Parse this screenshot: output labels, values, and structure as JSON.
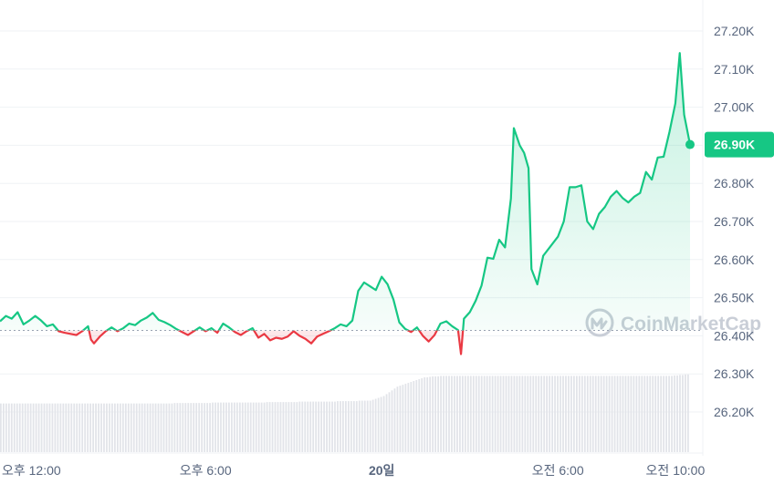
{
  "chart_data": {
    "type": "area",
    "baseline": 26414,
    "y_axis": {
      "min": 26100,
      "max": 27260,
      "ticks": [
        {
          "value": 27200,
          "label": "27.20K"
        },
        {
          "value": 27100,
          "label": "27.10K"
        },
        {
          "value": 27000,
          "label": "27.00K"
        },
        {
          "value": 26900,
          "label": "26.90K"
        },
        {
          "value": 26800,
          "label": "26.80K"
        },
        {
          "value": 26700,
          "label": "26.70K"
        },
        {
          "value": 26600,
          "label": "26.60K"
        },
        {
          "value": 26500,
          "label": "26.50K"
        },
        {
          "value": 26400,
          "label": "26.40K"
        },
        {
          "value": 26300,
          "label": "26.30K"
        },
        {
          "value": 26200,
          "label": "26.20K"
        }
      ]
    },
    "x_axis": {
      "range_hours": [
        11,
        34.5
      ],
      "ticks": [
        {
          "hour": 12,
          "label": "오후 12:00",
          "bold": false
        },
        {
          "hour": 18,
          "label": "오후 6:00",
          "bold": false
        },
        {
          "hour": 24,
          "label": "20일",
          "bold": true
        },
        {
          "hour": 30,
          "label": "오전 6:00",
          "bold": false
        },
        {
          "hour": 34,
          "label": "오전 10:00",
          "bold": false
        }
      ]
    },
    "current_price_label": "26.90K",
    "colors": {
      "up": "#16c784",
      "down": "#ea3943",
      "volume": "#e2e4e9",
      "tag": "#16c784"
    },
    "series": [
      {
        "points": [
          [
            11.0,
            26438
          ],
          [
            11.2,
            26452
          ],
          [
            11.4,
            26445
          ],
          [
            11.6,
            26462
          ],
          [
            11.8,
            26430
          ],
          [
            12.0,
            26440
          ],
          [
            12.2,
            26452
          ],
          [
            12.4,
            26440
          ],
          [
            12.6,
            26425
          ],
          [
            12.8,
            26430
          ],
          [
            13.0,
            26412
          ],
          [
            13.2,
            26408
          ],
          [
            13.4,
            26405
          ],
          [
            13.6,
            26402
          ],
          [
            13.8,
            26412
          ],
          [
            14.0,
            26425
          ],
          [
            14.1,
            26390
          ],
          [
            14.2,
            26380
          ],
          [
            14.4,
            26398
          ],
          [
            14.6,
            26412
          ],
          [
            14.8,
            26422
          ],
          [
            15.0,
            26412
          ],
          [
            15.2,
            26420
          ],
          [
            15.4,
            26432
          ],
          [
            15.6,
            26428
          ],
          [
            15.8,
            26440
          ],
          [
            16.0,
            26448
          ],
          [
            16.2,
            26460
          ],
          [
            16.4,
            26442
          ],
          [
            16.6,
            26436
          ],
          [
            16.8,
            26428
          ],
          [
            17.0,
            26418
          ],
          [
            17.2,
            26410
          ],
          [
            17.4,
            26402
          ],
          [
            17.6,
            26412
          ],
          [
            17.8,
            26422
          ],
          [
            18.0,
            26412
          ],
          [
            18.2,
            26420
          ],
          [
            18.4,
            26408
          ],
          [
            18.6,
            26432
          ],
          [
            18.8,
            26422
          ],
          [
            19.0,
            26410
          ],
          [
            19.2,
            26402
          ],
          [
            19.4,
            26412
          ],
          [
            19.6,
            26420
          ],
          [
            19.8,
            26395
          ],
          [
            20.0,
            26405
          ],
          [
            20.2,
            26388
          ],
          [
            20.4,
            26395
          ],
          [
            20.6,
            26392
          ],
          [
            20.8,
            26398
          ],
          [
            21.0,
            26412
          ],
          [
            21.2,
            26400
          ],
          [
            21.4,
            26392
          ],
          [
            21.6,
            26380
          ],
          [
            21.8,
            26398
          ],
          [
            22.0,
            26405
          ],
          [
            22.2,
            26412
          ],
          [
            22.4,
            26420
          ],
          [
            22.6,
            26430
          ],
          [
            22.8,
            26425
          ],
          [
            23.0,
            26440
          ],
          [
            23.2,
            26518
          ],
          [
            23.4,
            26540
          ],
          [
            23.6,
            26530
          ],
          [
            23.8,
            26520
          ],
          [
            24.0,
            26555
          ],
          [
            24.2,
            26535
          ],
          [
            24.4,
            26495
          ],
          [
            24.6,
            26435
          ],
          [
            24.8,
            26418
          ],
          [
            25.0,
            26410
          ],
          [
            25.2,
            26422
          ],
          [
            25.4,
            26400
          ],
          [
            25.6,
            26385
          ],
          [
            25.8,
            26402
          ],
          [
            26.0,
            26432
          ],
          [
            26.2,
            26438
          ],
          [
            26.4,
            26425
          ],
          [
            26.6,
            26415
          ],
          [
            26.7,
            26352
          ],
          [
            26.8,
            26445
          ],
          [
            27.0,
            26462
          ],
          [
            27.2,
            26492
          ],
          [
            27.4,
            26532
          ],
          [
            27.6,
            26605
          ],
          [
            27.8,
            26602
          ],
          [
            28.0,
            26652
          ],
          [
            28.2,
            26632
          ],
          [
            28.4,
            26760
          ],
          [
            28.5,
            26945
          ],
          [
            28.7,
            26900
          ],
          [
            28.85,
            26880
          ],
          [
            29.0,
            26840
          ],
          [
            29.1,
            26575
          ],
          [
            29.3,
            26535
          ],
          [
            29.5,
            26610
          ],
          [
            29.8,
            26640
          ],
          [
            30.0,
            26660
          ],
          [
            30.2,
            26700
          ],
          [
            30.4,
            26790
          ],
          [
            30.6,
            26790
          ],
          [
            30.8,
            26795
          ],
          [
            31.0,
            26700
          ],
          [
            31.2,
            26680
          ],
          [
            31.4,
            26720
          ],
          [
            31.6,
            26738
          ],
          [
            31.8,
            26765
          ],
          [
            32.0,
            26780
          ],
          [
            32.2,
            26762
          ],
          [
            32.4,
            26750
          ],
          [
            32.6,
            26765
          ],
          [
            32.8,
            26775
          ],
          [
            33.0,
            26830
          ],
          [
            33.2,
            26810
          ],
          [
            33.4,
            26868
          ],
          [
            33.6,
            26870
          ],
          [
            33.8,
            26935
          ],
          [
            34.0,
            27010
          ],
          [
            34.15,
            27142
          ],
          [
            34.3,
            26980
          ],
          [
            34.5,
            26902
          ]
        ]
      }
    ],
    "volume": {
      "range": [
        0,
        1000
      ],
      "values": [
        520,
        520,
        520,
        520,
        520,
        520,
        520,
        520,
        520,
        520,
        520,
        520,
        520,
        520,
        520,
        520,
        520,
        520,
        520,
        520,
        520,
        520,
        520,
        520,
        520,
        520,
        520,
        520,
        520,
        520,
        520,
        520,
        520,
        520,
        520,
        520,
        520,
        520,
        520,
        520,
        520,
        520,
        520,
        520,
        520,
        520,
        520,
        520,
        520,
        520,
        520,
        520,
        520,
        520,
        520,
        520,
        520,
        520,
        520,
        520,
        520,
        520,
        520,
        520,
        525,
        525,
        525,
        525,
        525,
        525,
        525,
        525,
        525,
        525,
        525,
        525,
        525,
        525,
        530,
        530,
        530,
        530,
        530,
        530,
        530,
        530,
        530,
        530,
        530,
        530,
        530,
        530,
        530,
        530,
        530,
        530,
        530,
        530,
        535,
        535,
        535,
        535,
        535,
        535,
        535,
        535,
        535,
        535,
        535,
        535,
        540,
        540,
        540,
        540,
        540,
        540,
        540,
        540,
        540,
        540,
        540,
        540,
        540,
        540,
        545,
        545,
        545,
        545,
        545,
        545,
        545,
        545,
        550,
        550,
        550,
        550,
        550,
        560,
        570,
        580,
        590,
        600,
        620,
        640,
        660,
        680,
        700,
        710,
        720,
        730,
        740,
        750,
        760,
        770,
        780,
        790,
        800,
        800,
        805,
        810,
        810,
        810,
        815,
        815,
        815,
        815,
        815,
        815,
        815,
        815,
        815,
        815,
        815,
        815,
        815,
        815,
        815,
        815,
        815,
        815,
        815,
        815,
        815,
        815,
        815,
        815,
        815,
        815,
        815,
        815,
        815,
        815,
        815,
        815,
        815,
        815,
        815,
        815,
        815,
        815,
        815,
        815,
        815,
        815,
        815,
        815,
        815,
        815,
        815,
        815,
        815,
        815,
        815,
        815,
        815,
        815,
        815,
        815,
        815,
        815,
        815,
        815,
        815,
        815,
        815,
        815,
        815,
        815,
        815,
        815,
        815,
        815,
        815,
        815,
        815,
        815,
        815,
        815,
        815,
        815,
        815,
        815,
        815,
        815,
        815,
        815,
        815,
        815,
        820,
        820,
        825,
        825,
        830,
        830
      ]
    }
  },
  "watermark": {
    "text": "CoinMarketCap",
    "icon": "coinmarketcap-logo-icon"
  }
}
